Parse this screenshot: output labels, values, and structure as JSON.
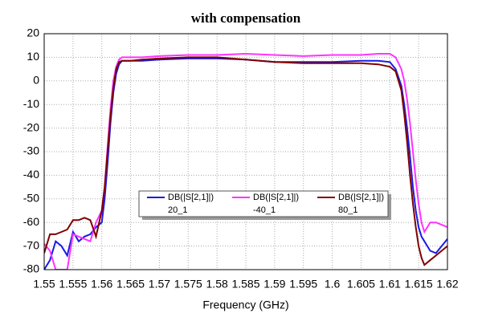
{
  "chart_data": {
    "type": "line",
    "title": "with compensation",
    "x_label": "Frequency (GHz)",
    "x": [
      1.55,
      1.551,
      1.552,
      1.553,
      1.554,
      1.555,
      1.556,
      1.557,
      1.558,
      1.559,
      1.56,
      1.5605,
      1.561,
      1.5615,
      1.562,
      1.5625,
      1.563,
      1.5635,
      1.564,
      1.565,
      1.567,
      1.57,
      1.575,
      1.58,
      1.585,
      1.59,
      1.595,
      1.6,
      1.605,
      1.608,
      1.61,
      1.611,
      1.612,
      1.6125,
      1.613,
      1.6135,
      1.614,
      1.6145,
      1.615,
      1.6155,
      1.616,
      1.617,
      1.618,
      1.619,
      1.62
    ],
    "series": [
      {
        "name": "DB(|S[2,1]|)",
        "sweep": "20_1",
        "color": "#1a1ae6",
        "values": [
          -80,
          -76,
          -68,
          -70,
          -74,
          -64,
          -68,
          -66,
          -65,
          -62,
          -60,
          -50,
          -35,
          -18,
          -5,
          3,
          7,
          8.5,
          8.5,
          8.5,
          8.5,
          9,
          9.5,
          9.5,
          9,
          8,
          8,
          8,
          8.5,
          8.5,
          8,
          5,
          -2,
          -10,
          -20,
          -32,
          -45,
          -55,
          -62,
          -66,
          -68,
          -72,
          -73,
          -70,
          -67
        ]
      },
      {
        "name": "DB(|S[2,1]|)",
        "sweep": "-40_1",
        "color": "#ff33ff",
        "values": [
          -69,
          -72,
          -80,
          -80,
          -80,
          -65,
          -66,
          -67,
          -68,
          -60,
          -55,
          -45,
          -28,
          -12,
          0,
          6,
          9,
          10,
          10,
          10,
          10,
          10.5,
          11,
          11,
          11.5,
          11,
          10.5,
          11,
          11,
          11.5,
          11.5,
          10,
          5,
          0,
          -8,
          -18,
          -30,
          -42,
          -52,
          -60,
          -64,
          -60,
          -60,
          -61,
          -62
        ]
      },
      {
        "name": "DB(|S[2,1]|)",
        "sweep": "80_1",
        "color": "#800000",
        "values": [
          -73,
          -65,
          -65,
          -64,
          -63,
          -59,
          -59,
          -58,
          -59,
          -66,
          -55,
          -45,
          -30,
          -15,
          -3,
          5,
          8,
          8.5,
          8.5,
          8.5,
          9,
          9.5,
          10,
          10,
          9,
          8,
          7.5,
          7.5,
          7.5,
          7,
          6,
          4,
          -4,
          -14,
          -26,
          -40,
          -52,
          -62,
          -70,
          -75,
          -78,
          -76,
          -74,
          -72,
          -70
        ]
      }
    ],
    "xlim": [
      1.55,
      1.62
    ],
    "xticks": [
      1.55,
      1.555,
      1.56,
      1.565,
      1.57,
      1.575,
      1.58,
      1.585,
      1.59,
      1.595,
      1.6,
      1.605,
      1.61,
      1.615,
      1.62
    ],
    "ylim": [
      -80,
      20
    ],
    "yticks": [
      20,
      10,
      0,
      -10,
      -20,
      -30,
      -40,
      -50,
      -60,
      -70,
      -80
    ],
    "grid": true
  }
}
